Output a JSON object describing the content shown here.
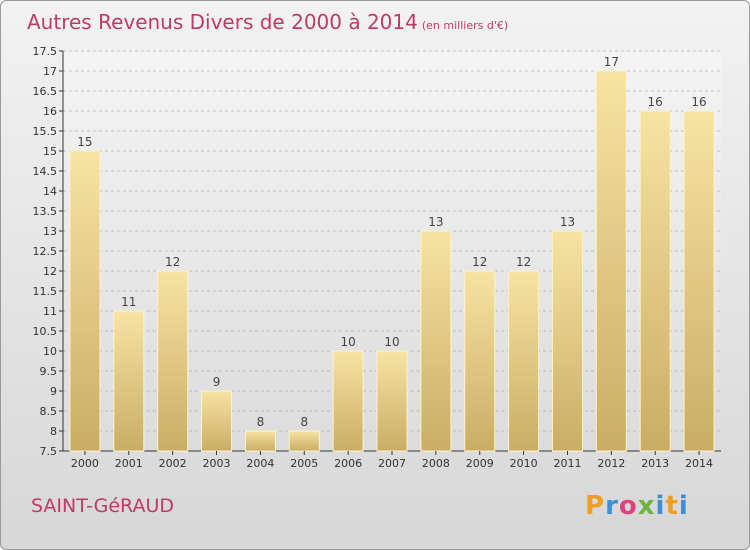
{
  "title": "Autres Revenus Divers de 2000 à 2014",
  "subtitle": "(en milliers d'€)",
  "commune": "SAINT-GéRAUD",
  "logo": {
    "letters": [
      "P",
      "r",
      "o",
      "x",
      "i",
      "t",
      "i"
    ],
    "colors": [
      "#f0a020",
      "#3a8fd6",
      "#e04080",
      "#6cb33f",
      "#3a8fd6",
      "#f0a020",
      "#3a8fd6"
    ]
  },
  "colors": {
    "title": "#c03a66",
    "bar_top": "#f7e3a3",
    "bar_bottom": "#c9ad64",
    "grid": "#b0b0b0"
  },
  "chart_data": {
    "type": "bar",
    "categories": [
      "2000",
      "2001",
      "2002",
      "2003",
      "2004",
      "2005",
      "2006",
      "2007",
      "2008",
      "2009",
      "2010",
      "2011",
      "2012",
      "2013",
      "2014"
    ],
    "values": [
      15,
      11,
      12,
      9,
      8,
      8,
      10,
      10,
      13,
      12,
      12,
      13,
      17,
      16,
      16
    ],
    "ylim": [
      7.5,
      17.5
    ],
    "yticks": [
      "7.5",
      "8",
      "8.5",
      "9",
      "9.5",
      "10",
      "10.5",
      "11",
      "11.5",
      "12",
      "12.5",
      "13",
      "13.5",
      "14",
      "14.5",
      "15",
      "15.5",
      "16",
      "16.5",
      "17",
      "17.5"
    ],
    "grid": true
  }
}
